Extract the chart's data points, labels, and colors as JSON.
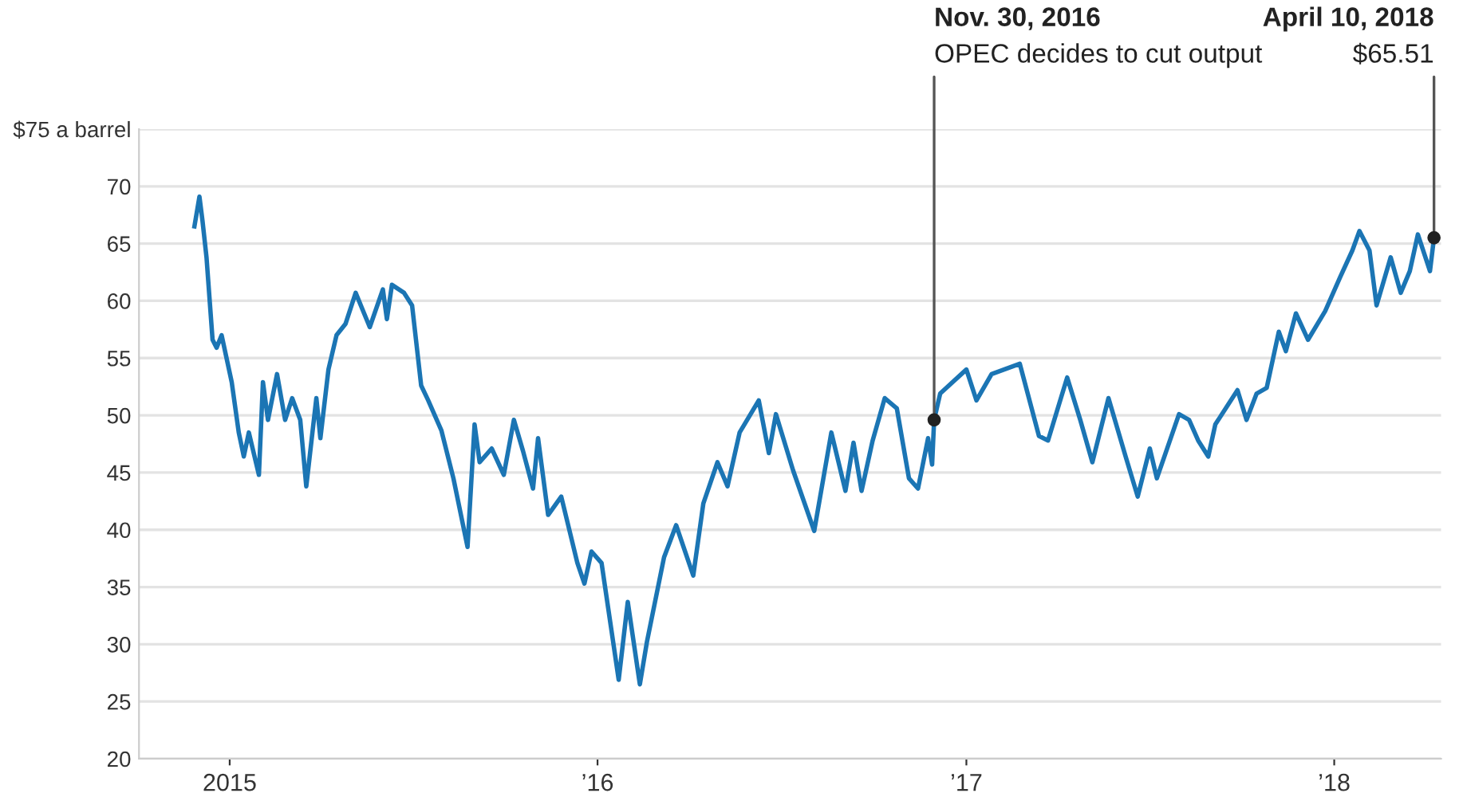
{
  "chart_data": {
    "type": "line",
    "x": [
      "2014-11-27",
      "2014-12-02",
      "2014-12-05",
      "2014-12-09",
      "2014-12-15",
      "2014-12-19",
      "2014-12-24",
      "2015-01-03",
      "2015-01-10",
      "2015-01-15",
      "2015-01-20",
      "2015-01-30",
      "2015-02-03",
      "2015-02-08",
      "2015-02-17",
      "2015-02-25",
      "2015-03-04",
      "2015-03-12",
      "2015-03-18",
      "2015-03-28",
      "2015-04-01",
      "2015-04-09",
      "2015-04-17",
      "2015-04-26",
      "2015-05-06",
      "2015-05-20",
      "2015-06-02",
      "2015-06-06",
      "2015-06-11",
      "2015-06-23",
      "2015-07-01",
      "2015-07-10",
      "2015-07-17",
      "2015-07-30",
      "2015-08-11",
      "2015-08-25",
      "2015-09-01",
      "2015-09-06",
      "2015-09-18",
      "2015-09-30",
      "2015-10-10",
      "2015-10-19",
      "2015-10-29",
      "2015-11-03",
      "2015-11-13",
      "2015-11-26",
      "2015-12-12",
      "2015-12-19",
      "2015-12-26",
      "2016-01-05",
      "2016-01-22",
      "2016-01-31",
      "2016-02-12",
      "2016-02-19",
      "2016-03-07",
      "2016-03-19",
      "2016-04-05",
      "2016-04-15",
      "2016-04-29",
      "2016-05-09",
      "2016-05-21",
      "2016-06-09",
      "2016-06-19",
      "2016-06-26",
      "2016-07-13",
      "2016-08-03",
      "2016-08-20",
      "2016-09-03",
      "2016-09-11",
      "2016-09-19",
      "2016-09-30",
      "2016-10-12",
      "2016-10-24",
      "2016-11-05",
      "2016-11-14",
      "2016-11-24",
      "2016-11-28",
      "2016-11-30",
      "2016-12-06",
      "2017-01-01",
      "2017-01-11",
      "2017-01-26",
      "2017-02-23",
      "2017-03-14",
      "2017-03-23",
      "2017-04-11",
      "2017-04-24",
      "2017-05-06",
      "2017-05-22",
      "2017-06-08",
      "2017-06-20",
      "2017-07-02",
      "2017-07-09",
      "2017-07-31",
      "2017-08-10",
      "2017-08-19",
      "2017-08-29",
      "2017-09-05",
      "2017-09-27",
      "2017-10-06",
      "2017-10-16",
      "2017-10-26",
      "2017-11-07",
      "2017-11-14",
      "2017-11-24",
      "2017-12-06",
      "2017-12-23",
      "2018-01-07",
      "2018-01-19",
      "2018-01-26",
      "2018-02-05",
      "2018-02-12",
      "2018-02-26",
      "2018-03-08",
      "2018-03-17",
      "2018-03-25",
      "2018-04-06",
      "2018-04-10"
    ],
    "series": [
      {
        "color": "#1b75b4",
        "values": [
          66.5,
          69.1,
          67,
          63.8,
          56.6,
          55.9,
          57,
          52.9,
          48.5,
          46.4,
          48.5,
          44.8,
          52.9,
          49.6,
          53.6,
          49.6,
          51.5,
          49.6,
          43.8,
          51.5,
          48,
          54,
          57,
          58,
          60.7,
          57.7,
          61,
          58.4,
          61.4,
          60.7,
          59.6,
          52.6,
          51.3,
          48.7,
          44.5,
          38.5,
          49.2,
          45.9,
          47.1,
          44.8,
          49.6,
          46.9,
          43.6,
          48,
          41.3,
          42.9,
          37.1,
          35.3,
          38.1,
          37.1,
          26.9,
          33.7,
          26.5,
          30.2,
          37.6,
          40.4,
          36,
          42.3,
          45.9,
          43.8,
          48.5,
          51.3,
          46.7,
          50.1,
          45.2,
          39.9,
          48.5,
          43.4,
          47.6,
          43.4,
          47.8,
          51.5,
          50.6,
          44.5,
          43.6,
          48,
          45.7,
          49.6,
          51.9,
          54,
          51.3,
          53.6,
          54.5,
          48.2,
          47.8,
          53.3,
          49.6,
          45.9,
          51.5,
          46.4,
          42.9,
          47.1,
          44.5,
          50.1,
          49.6,
          47.8,
          46.4,
          49.2,
          52.2,
          49.6,
          51.9,
          52.4,
          57.3,
          55.6,
          58.9,
          56.6,
          59.1,
          62.1,
          64.4,
          66.1,
          64.4,
          59.6,
          63.8,
          60.7,
          62.6,
          65.8,
          62.6,
          65.51
        ]
      }
    ],
    "xlim": [
      "2014-10-03",
      "2018-04-17"
    ],
    "xticks": [
      {
        "value": "2015-01-01",
        "label": "2015"
      },
      {
        "value": "2016-01-01",
        "label": "’16"
      },
      {
        "value": "2017-01-01",
        "label": "’17"
      },
      {
        "value": "2018-01-01",
        "label": "’18"
      }
    ],
    "ylim": [
      20,
      75
    ],
    "yticks": [
      20,
      25,
      30,
      35,
      40,
      45,
      50,
      55,
      60,
      65,
      70,
      {
        "value": 75,
        "label": "$75 a barrel"
      }
    ],
    "grid": "y",
    "annotations": [
      {
        "text": "Nov. 30, 2016\nOPEC decides to cut output",
        "x": "2016-11-30",
        "y": 49.6
      },
      {
        "text": "April 10, 2018\n$65.51",
        "x": "2018-04-10",
        "y": 65.51
      }
    ]
  }
}
